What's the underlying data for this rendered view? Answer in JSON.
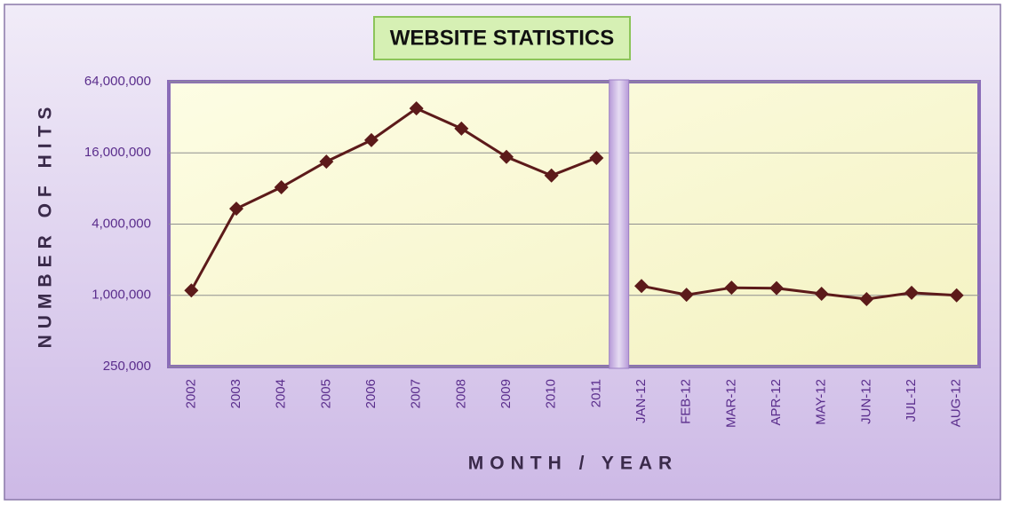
{
  "chart_data": {
    "type": "line",
    "title": "WEBSITE STATISTICS",
    "x_label": "MONTH / YEAR",
    "y_label": "NUMBER OF HITS",
    "categories": [
      "2002",
      "2003",
      "2004",
      "2005",
      "2006",
      "2007",
      "2008",
      "2009",
      "2010",
      "2011",
      null,
      "JAN-12",
      "FEB-12",
      "MAR-12",
      "APR-12",
      "MAY-12",
      "JUN-12",
      "JUL-12",
      "AUG-12"
    ],
    "values": [
      1100000,
      5400000,
      8200000,
      13500000,
      20500000,
      38000000,
      25700000,
      14800000,
      10300000,
      14500000,
      null,
      1200000,
      1010000,
      1160000,
      1150000,
      1030000,
      930000,
      1050000,
      1000000
    ],
    "color": "#5c1a1a",
    "log_scale": true,
    "grid": true,
    "ylim": [
      250000,
      64000000
    ],
    "yticks": [
      {
        "value": 250000,
        "label": "250,000"
      },
      {
        "value": 1000000,
        "label": "1,000,000"
      },
      {
        "value": 4000000,
        "label": "4,000,000"
      },
      {
        "value": 16000000,
        "label": "16,000,000"
      },
      {
        "value": 64000000,
        "label": "64,000,000"
      }
    ]
  }
}
